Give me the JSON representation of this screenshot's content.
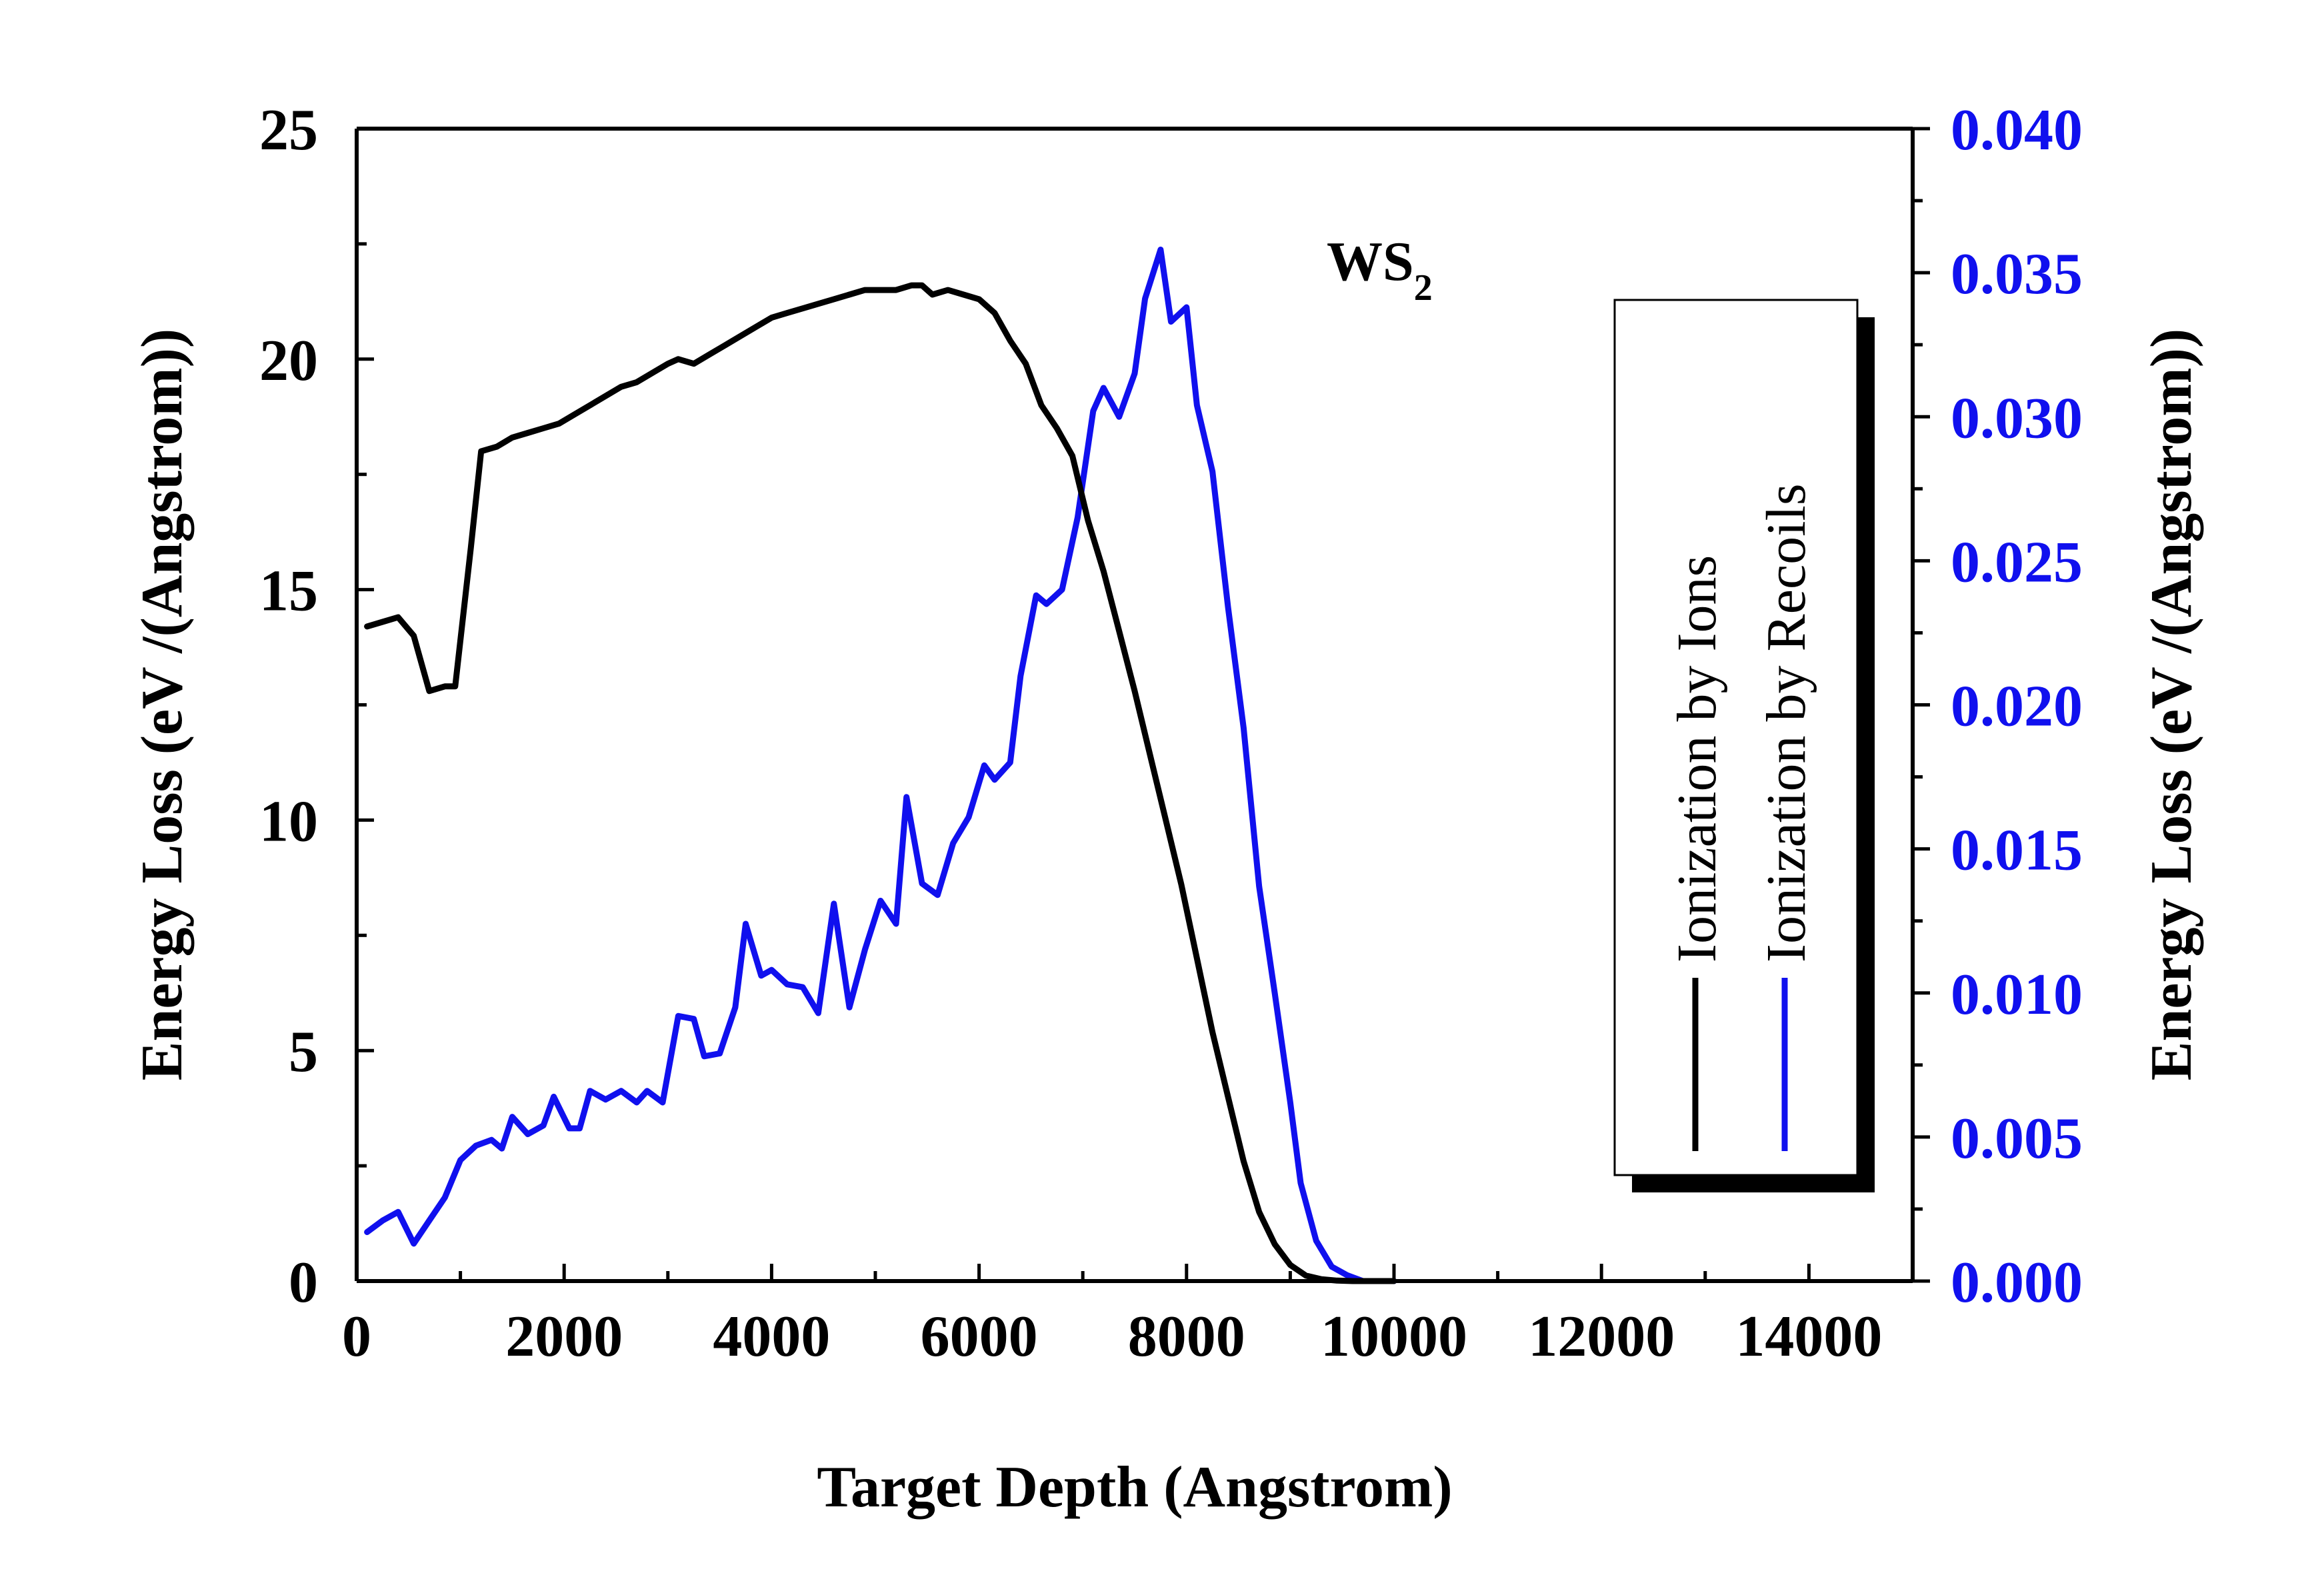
{
  "chart_data": {
    "type": "line",
    "annotation": {
      "main": "WS",
      "subscript": "2"
    },
    "xlabel": "Target Depth (Angstrom)",
    "ylabel_left": "Energy Loss (eV /(Angstrom))",
    "ylabel_right": "Energy Loss (eV /(Angstrom))",
    "xlim": [
      0,
      15000
    ],
    "ylim_left": [
      0,
      25
    ],
    "ylim_right": [
      0,
      0.04
    ],
    "xticks": [
      "0",
      "2000",
      "4000",
      "6000",
      "8000",
      "10000",
      "12000",
      "14000"
    ],
    "yticks_left": [
      "0",
      "5",
      "10",
      "15",
      "20",
      "25"
    ],
    "yticks_right": [
      "0.000",
      "0.005",
      "0.010",
      "0.015",
      "0.020",
      "0.025",
      "0.030",
      "0.035",
      "0.040"
    ],
    "grid": false,
    "legend_position": "right, rotated 90°",
    "colors": {
      "ions": "#000000",
      "recoils": "#1010ee",
      "right_axis": "#1010ee"
    },
    "series": [
      {
        "name": "Ionization by Ions",
        "axis": "left",
        "color": "#000000",
        "points": [
          [
            100,
            14.2
          ],
          [
            250,
            14.3
          ],
          [
            400,
            14.4
          ],
          [
            550,
            14.0
          ],
          [
            700,
            12.8
          ],
          [
            850,
            12.9
          ],
          [
            950,
            12.9
          ],
          [
            1100,
            15.9
          ],
          [
            1200,
            18.0
          ],
          [
            1350,
            18.1
          ],
          [
            1500,
            18.3
          ],
          [
            1650,
            18.4
          ],
          [
            1800,
            18.5
          ],
          [
            1950,
            18.6
          ],
          [
            2100,
            18.8
          ],
          [
            2250,
            19.0
          ],
          [
            2400,
            19.2
          ],
          [
            2550,
            19.4
          ],
          [
            2700,
            19.5
          ],
          [
            2850,
            19.7
          ],
          [
            3000,
            19.9
          ],
          [
            3100,
            20.0
          ],
          [
            3250,
            19.9
          ],
          [
            3400,
            20.1
          ],
          [
            3550,
            20.3
          ],
          [
            3700,
            20.5
          ],
          [
            3850,
            20.7
          ],
          [
            4000,
            20.9
          ],
          [
            4150,
            21.0
          ],
          [
            4300,
            21.1
          ],
          [
            4450,
            21.2
          ],
          [
            4600,
            21.3
          ],
          [
            4750,
            21.4
          ],
          [
            4900,
            21.5
          ],
          [
            5050,
            21.5
          ],
          [
            5200,
            21.5
          ],
          [
            5350,
            21.6
          ],
          [
            5450,
            21.6
          ],
          [
            5550,
            21.4
          ],
          [
            5700,
            21.5
          ],
          [
            5850,
            21.4
          ],
          [
            6000,
            21.3
          ],
          [
            6150,
            21.0
          ],
          [
            6300,
            20.4
          ],
          [
            6450,
            19.9
          ],
          [
            6600,
            19.0
          ],
          [
            6750,
            18.5
          ],
          [
            6900,
            17.9
          ],
          [
            7050,
            16.5
          ],
          [
            7200,
            15.4
          ],
          [
            7350,
            14.1
          ],
          [
            7500,
            12.8
          ],
          [
            7650,
            11.4
          ],
          [
            7800,
            10.0
          ],
          [
            7950,
            8.6
          ],
          [
            8100,
            7.0
          ],
          [
            8250,
            5.4
          ],
          [
            8400,
            4.0
          ],
          [
            8550,
            2.6
          ],
          [
            8700,
            1.5
          ],
          [
            8850,
            0.8
          ],
          [
            9000,
            0.35
          ],
          [
            9150,
            0.12
          ],
          [
            9300,
            0.04
          ],
          [
            9450,
            0.01
          ],
          [
            9600,
            0.0
          ],
          [
            10000,
            0.0
          ]
        ]
      },
      {
        "name": "Ionization by Recoils",
        "axis": "right",
        "color": "#1010ee",
        "points": [
          [
            100,
            0.0017
          ],
          [
            250,
            0.0021
          ],
          [
            400,
            0.0024
          ],
          [
            550,
            0.0013
          ],
          [
            700,
            0.0021
          ],
          [
            850,
            0.0029
          ],
          [
            1000,
            0.0042
          ],
          [
            1150,
            0.0047
          ],
          [
            1300,
            0.0049
          ],
          [
            1400,
            0.0046
          ],
          [
            1500,
            0.0057
          ],
          [
            1650,
            0.0051
          ],
          [
            1800,
            0.0054
          ],
          [
            1900,
            0.0064
          ],
          [
            2050,
            0.0053
          ],
          [
            2150,
            0.0053
          ],
          [
            2250,
            0.0066
          ],
          [
            2400,
            0.0063
          ],
          [
            2550,
            0.0066
          ],
          [
            2700,
            0.0062
          ],
          [
            2800,
            0.0066
          ],
          [
            2950,
            0.0062
          ],
          [
            3100,
            0.0092
          ],
          [
            3250,
            0.0091
          ],
          [
            3350,
            0.0078
          ],
          [
            3500,
            0.0079
          ],
          [
            3650,
            0.0095
          ],
          [
            3750,
            0.0124
          ],
          [
            3900,
            0.0106
          ],
          [
            4000,
            0.0108
          ],
          [
            4150,
            0.0103
          ],
          [
            4300,
            0.0102
          ],
          [
            4450,
            0.0093
          ],
          [
            4600,
            0.0131
          ],
          [
            4750,
            0.0095
          ],
          [
            4900,
            0.0115
          ],
          [
            5050,
            0.0132
          ],
          [
            5200,
            0.0124
          ],
          [
            5300,
            0.0168
          ],
          [
            5450,
            0.0138
          ],
          [
            5600,
            0.0134
          ],
          [
            5750,
            0.0152
          ],
          [
            5900,
            0.0161
          ],
          [
            6050,
            0.0179
          ],
          [
            6150,
            0.0174
          ],
          [
            6300,
            0.018
          ],
          [
            6400,
            0.021
          ],
          [
            6550,
            0.0238
          ],
          [
            6650,
            0.0235
          ],
          [
            6800,
            0.024
          ],
          [
            6950,
            0.0265
          ],
          [
            7100,
            0.0302
          ],
          [
            7200,
            0.031
          ],
          [
            7350,
            0.03
          ],
          [
            7500,
            0.0315
          ],
          [
            7600,
            0.0341
          ],
          [
            7750,
            0.0358
          ],
          [
            7850,
            0.0333
          ],
          [
            8000,
            0.0338
          ],
          [
            8100,
            0.0304
          ],
          [
            8250,
            0.0281
          ],
          [
            8400,
            0.0234
          ],
          [
            8550,
            0.0192
          ],
          [
            8700,
            0.0137
          ],
          [
            8850,
            0.01
          ],
          [
            9000,
            0.0062
          ],
          [
            9100,
            0.0034
          ],
          [
            9250,
            0.0014
          ],
          [
            9400,
            0.0005
          ],
          [
            9550,
            0.0002
          ],
          [
            9700,
            0.0
          ],
          [
            10000,
            0.0
          ]
        ]
      }
    ]
  }
}
